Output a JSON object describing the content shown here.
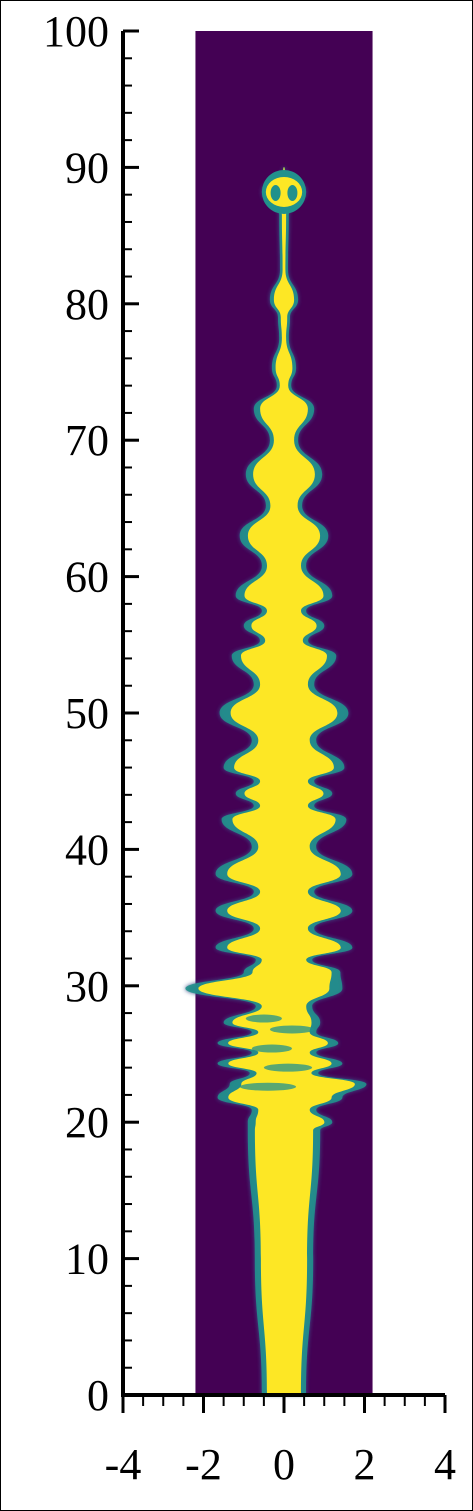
{
  "chart_data": {
    "type": "heatmap",
    "title": "",
    "xlabel": "",
    "ylabel": "",
    "xlim": [
      -4,
      4
    ],
    "ylim": [
      0,
      100
    ],
    "x_ticks": [
      -4,
      -2,
      0,
      2,
      4
    ],
    "y_ticks": [
      0,
      10,
      20,
      30,
      40,
      50,
      60,
      70,
      80,
      90,
      100
    ],
    "x_tick_labels": [
      "-4",
      "-2",
      "0",
      "2",
      "4"
    ],
    "y_tick_labels": [
      "0",
      "10",
      "20",
      "30",
      "40",
      "50",
      "60",
      "70",
      "80",
      "90",
      "100"
    ],
    "domain_x": [
      -2.2,
      2.2
    ],
    "domain_y": [
      0,
      100
    ],
    "colors": {
      "background": "#440154",
      "jet": "#fde725",
      "edge": "#21918c",
      "mid": "#3b528b"
    },
    "jet": {
      "cone": {
        "y_start": 0,
        "y_end": 20,
        "half_width_start": 0.55,
        "half_width_end": 0.9
      },
      "bulges": [
        {
          "y": 20.0,
          "hw": 1.05,
          "dx": 0.15
        },
        {
          "y": 21.8,
          "hw": 1.55,
          "dx": -0.1
        },
        {
          "y": 22.8,
          "hw": 1.7,
          "dx": 0.35
        },
        {
          "y": 24.3,
          "hw": 1.55,
          "dx": -0.1
        },
        {
          "y": 25.8,
          "hw": 1.5,
          "dx": -0.15
        },
        {
          "y": 27.3,
          "hw": 1.2,
          "dx": -0.3
        },
        {
          "y": 29.8,
          "hw": 1.95,
          "dx": -0.5
        },
        {
          "y": 31.0,
          "hw": 1.2,
          "dx": 0.2
        },
        {
          "y": 32.8,
          "hw": 1.7,
          "dx": 0.0
        },
        {
          "y": 35.5,
          "hw": 1.7,
          "dx": 0.0
        },
        {
          "y": 38.2,
          "hw": 1.7,
          "dx": 0.0
        },
        {
          "y": 42.2,
          "hw": 1.55,
          "dx": 0.0
        },
        {
          "y": 44.1,
          "hw": 1.2,
          "dx": 0.0
        },
        {
          "y": 46.0,
          "hw": 1.5,
          "dx": 0.0
        },
        {
          "y": 50.0,
          "hw": 1.6,
          "dx": 0.0
        },
        {
          "y": 54.2,
          "hw": 1.3,
          "dx": 0.0
        },
        {
          "y": 56.4,
          "hw": 1.0,
          "dx": 0.0
        },
        {
          "y": 58.6,
          "hw": 1.2,
          "dx": 0.0
        },
        {
          "y": 63.0,
          "hw": 1.1,
          "dx": 0.0
        },
        {
          "y": 67.5,
          "hw": 0.95,
          "dx": 0.0
        },
        {
          "y": 72.3,
          "hw": 0.75,
          "dx": 0.0
        },
        {
          "y": 75.3,
          "hw": 0.3,
          "dx": 0.0
        },
        {
          "y": 80.3,
          "hw": 0.35,
          "dx": 0.0
        },
        {
          "y": 88.2,
          "hw": 0.55,
          "dx": 0.0
        }
      ],
      "waists": [
        {
          "y": 20.9,
          "hw": 0.8
        },
        {
          "y": 23.6,
          "hw": 0.85
        },
        {
          "y": 25.1,
          "hw": 0.8
        },
        {
          "y": 26.6,
          "hw": 0.8
        },
        {
          "y": 28.5,
          "hw": 0.7
        },
        {
          "y": 31.9,
          "hw": 0.7
        },
        {
          "y": 34.2,
          "hw": 0.75
        },
        {
          "y": 36.9,
          "hw": 0.75
        },
        {
          "y": 40.2,
          "hw": 0.8
        },
        {
          "y": 43.2,
          "hw": 0.75
        },
        {
          "y": 45.0,
          "hw": 0.75
        },
        {
          "y": 48.0,
          "hw": 0.8
        },
        {
          "y": 52.1,
          "hw": 0.75
        },
        {
          "y": 55.3,
          "hw": 0.6
        },
        {
          "y": 57.5,
          "hw": 0.55
        },
        {
          "y": 60.8,
          "hw": 0.55
        },
        {
          "y": 65.2,
          "hw": 0.45
        },
        {
          "y": 70.0,
          "hw": 0.35
        },
        {
          "y": 74.0,
          "hw": 0.18
        },
        {
          "y": 77.5,
          "hw": 0.12
        },
        {
          "y": 79.0,
          "hw": 0.15
        },
        {
          "y": 82.5,
          "hw": 0.1
        },
        {
          "y": 86.5,
          "hw": 0.12
        },
        {
          "y": 90.0,
          "hw": 0.02
        }
      ]
    }
  }
}
